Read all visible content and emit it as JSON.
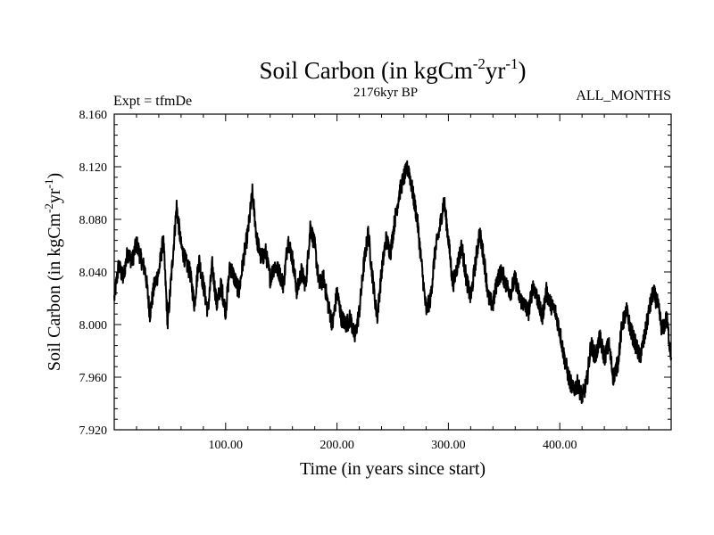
{
  "chart_data": {
    "type": "line",
    "title_main": "Soil Carbon (in kgCm",
    "title_sup1": "-2",
    "title_mid": "yr",
    "title_sup2": "-1",
    "title_end": ")",
    "subtitle_left": "Expt = tfmDe",
    "subtitle_center": "2176kyr BP",
    "subtitle_right": "ALL_MONTHS",
    "xlabel": "Time (in years since start)",
    "ylabel_main": "Soil Carbon (in kgCm",
    "ylabel_sup1": "-2",
    "ylabel_mid": "yr",
    "ylabel_sup2": "-1",
    "ylabel_end": ")",
    "xlim": [
      0,
      500
    ],
    "ylim": [
      7.92,
      8.16
    ],
    "x_ticks": [
      100,
      200,
      300,
      400
    ],
    "x_tick_labels": [
      "100.00",
      "200.00",
      "300.00",
      "400.00"
    ],
    "y_ticks": [
      7.92,
      7.96,
      8.0,
      8.04,
      8.08,
      8.12,
      8.16
    ],
    "y_tick_labels": [
      "7.920",
      "7.960",
      "8.000",
      "8.040",
      "8.080",
      "8.120",
      "8.160"
    ],
    "series": [
      {
        "name": "soil_carbon",
        "x": [
          0,
          4,
          8,
          12,
          16,
          20,
          24,
          28,
          32,
          36,
          40,
          44,
          48,
          52,
          56,
          60,
          64,
          68,
          72,
          76,
          80,
          84,
          88,
          92,
          96,
          100,
          104,
          108,
          112,
          116,
          120,
          124,
          128,
          132,
          136,
          140,
          144,
          148,
          152,
          156,
          160,
          164,
          168,
          172,
          176,
          180,
          184,
          188,
          192,
          196,
          200,
          204,
          208,
          212,
          216,
          220,
          224,
          228,
          232,
          236,
          240,
          244,
          248,
          252,
          256,
          260,
          264,
          268,
          272,
          276,
          280,
          284,
          288,
          292,
          296,
          300,
          304,
          308,
          312,
          316,
          320,
          324,
          328,
          332,
          336,
          340,
          344,
          348,
          352,
          356,
          360,
          364,
          368,
          372,
          376,
          380,
          384,
          388,
          392,
          396,
          400,
          404,
          408,
          412,
          416,
          420,
          424,
          428,
          432,
          436,
          440,
          444,
          448,
          452,
          456,
          460,
          464,
          468,
          472,
          476,
          480,
          484,
          488,
          492,
          496,
          500
        ],
        "values": [
          8.02,
          8.045,
          8.035,
          8.055,
          8.048,
          8.062,
          8.05,
          8.04,
          8.008,
          8.03,
          8.04,
          8.065,
          8.0,
          8.045,
          8.09,
          8.06,
          8.048,
          8.04,
          8.015,
          8.05,
          8.03,
          8.01,
          8.045,
          8.015,
          8.03,
          8.01,
          8.045,
          8.035,
          8.025,
          8.05,
          8.07,
          8.1,
          8.065,
          8.05,
          8.055,
          8.035,
          8.045,
          8.04,
          8.03,
          8.065,
          8.05,
          8.025,
          8.04,
          8.03,
          8.075,
          8.06,
          8.03,
          8.035,
          8.015,
          8.0,
          8.025,
          8.005,
          8.0,
          8.005,
          7.99,
          8.01,
          8.045,
          8.07,
          8.035,
          8.005,
          8.04,
          8.065,
          8.055,
          8.08,
          8.1,
          8.112,
          8.12,
          8.1,
          8.08,
          8.045,
          8.01,
          8.02,
          8.055,
          8.072,
          8.095,
          8.065,
          8.03,
          8.045,
          8.06,
          8.035,
          8.02,
          8.045,
          8.07,
          8.05,
          8.02,
          8.015,
          8.035,
          8.04,
          8.03,
          8.025,
          8.035,
          8.02,
          8.015,
          8.01,
          8.03,
          8.02,
          8.005,
          8.025,
          8.015,
          8.01,
          7.995,
          7.975,
          7.96,
          7.95,
          7.955,
          7.945,
          7.955,
          7.985,
          7.975,
          7.99,
          7.975,
          7.985,
          7.96,
          7.97,
          8.0,
          8.01,
          7.995,
          7.985,
          7.975,
          7.99,
          8.01,
          8.025,
          8.015,
          7.995,
          8.005,
          7.975
        ]
      }
    ]
  }
}
